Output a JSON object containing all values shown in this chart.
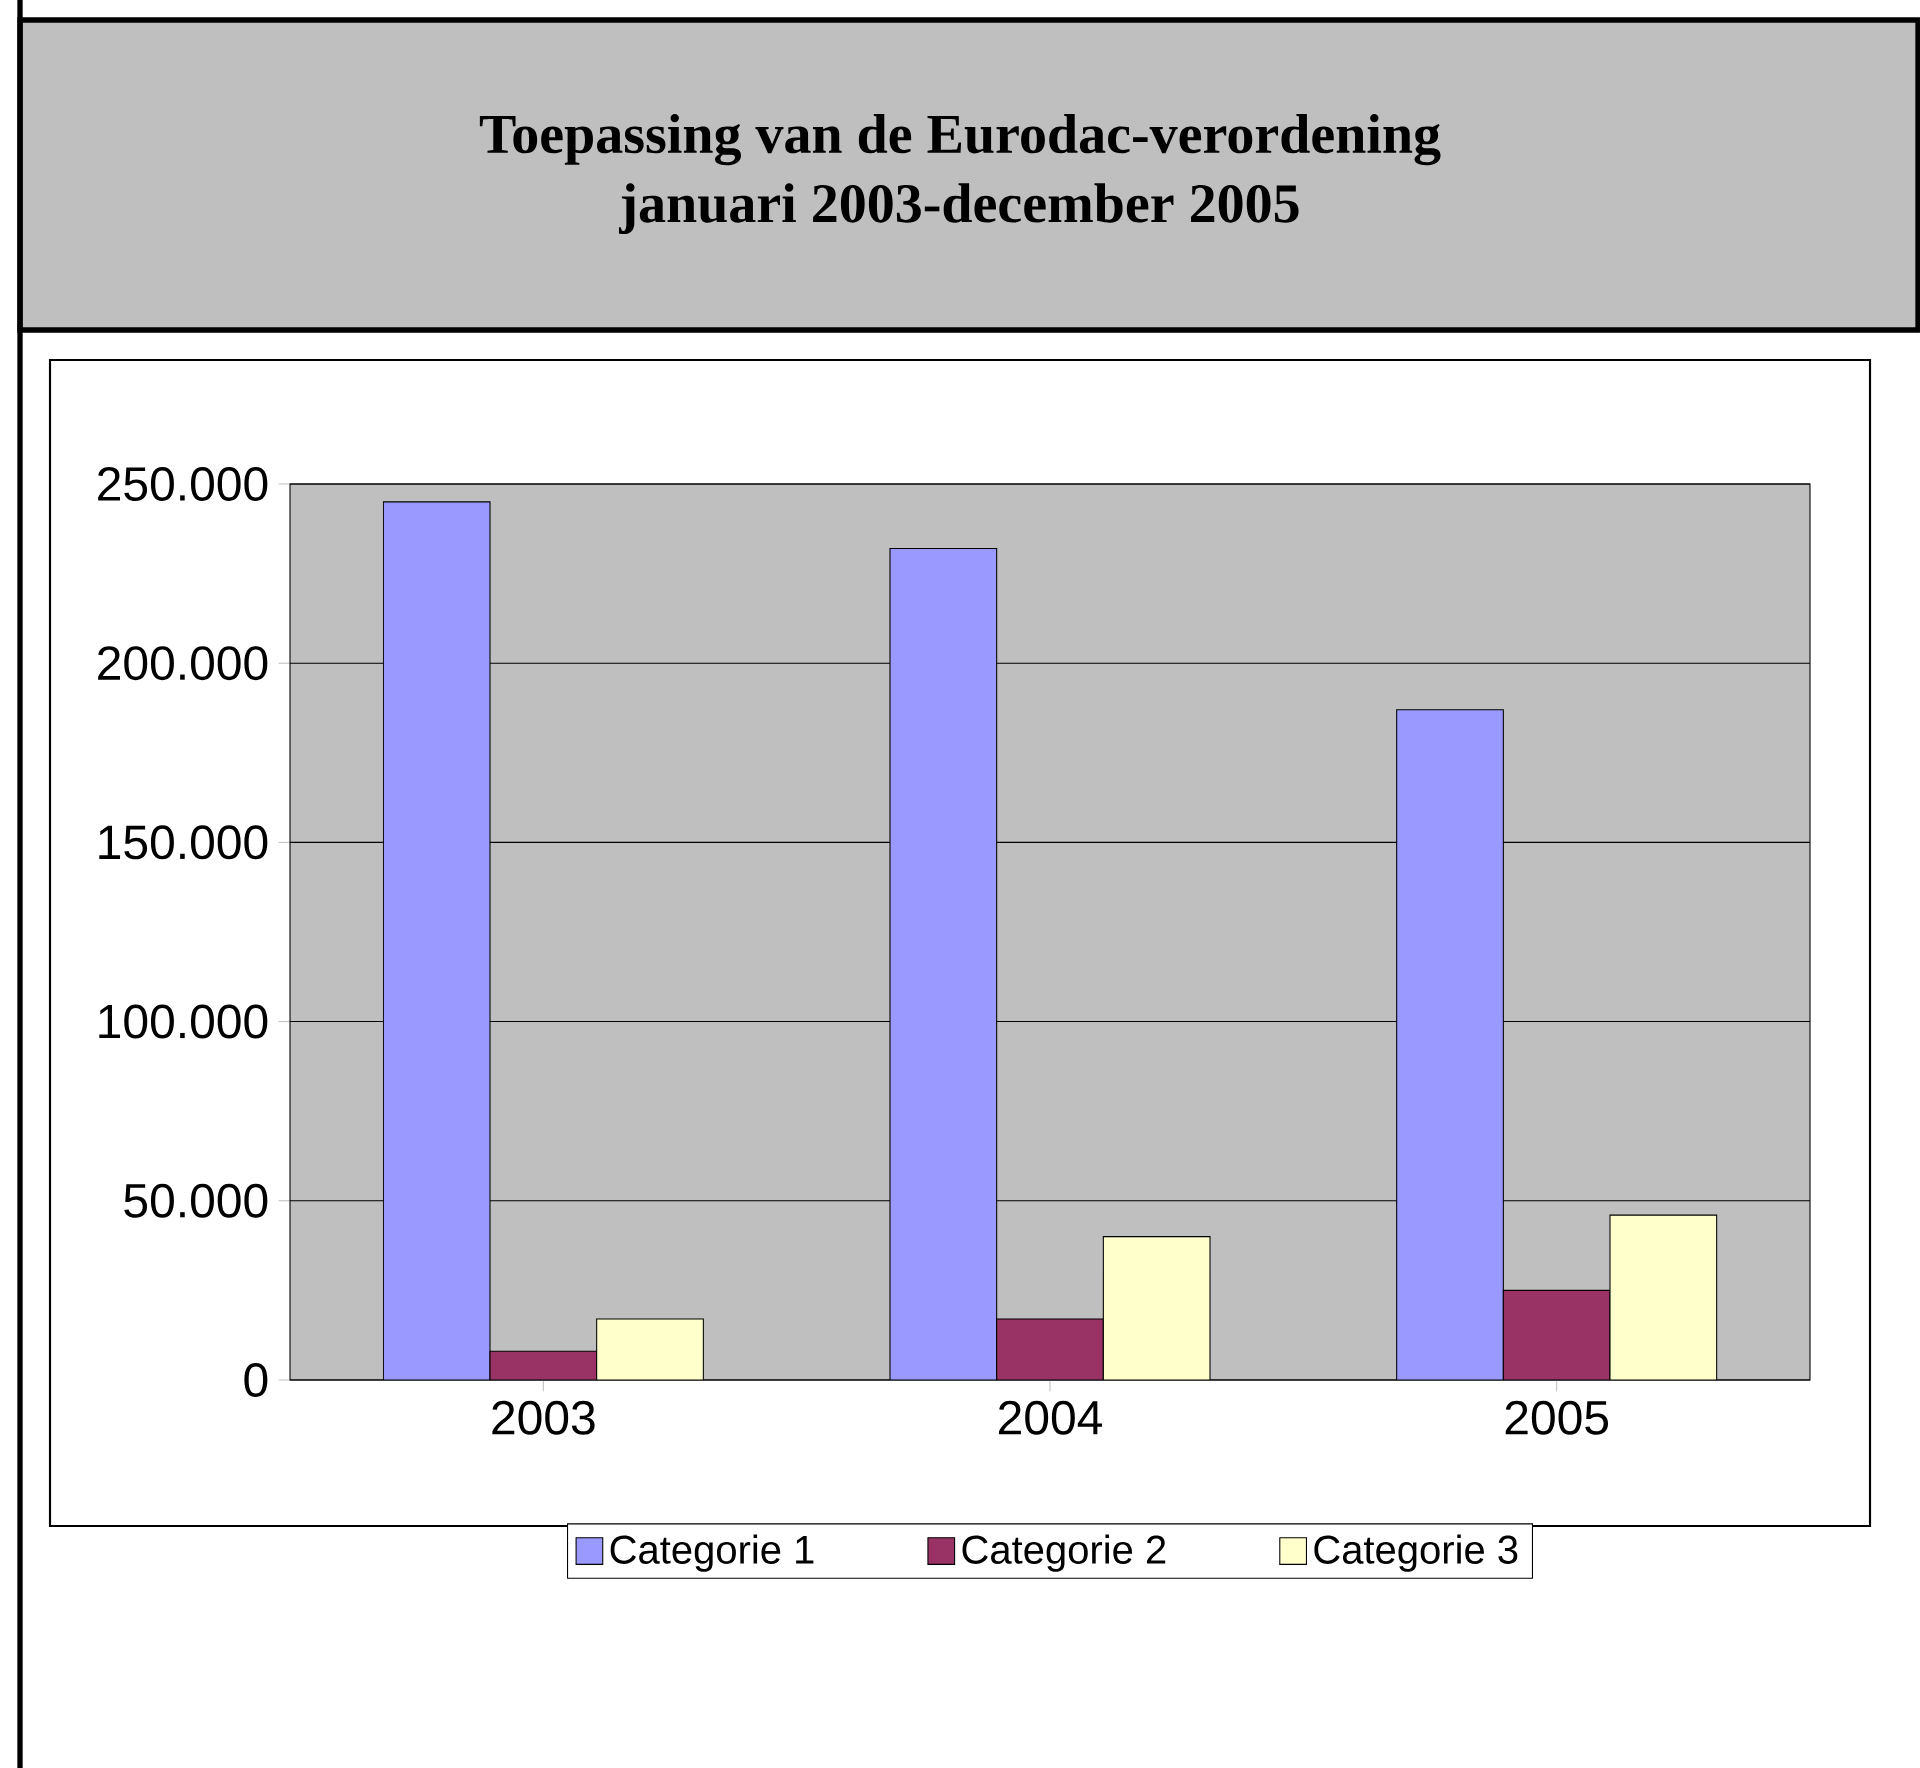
{
  "chart_data": {
    "type": "bar",
    "title": "Toepassing van de Eurodac-verordening",
    "subtitle": "januari 2003-december 2005",
    "categories": [
      "2003",
      "2004",
      "2005"
    ],
    "series": [
      {
        "name": "Categorie 1",
        "color": "#9999ff",
        "values": [
          245000,
          232000,
          187000
        ]
      },
      {
        "name": "Categorie 2",
        "color": "#993366",
        "values": [
          8000,
          17000,
          25000
        ]
      },
      {
        "name": "Categorie 3",
        "color": "#ffffcc",
        "values": [
          17000,
          40000,
          46000
        ]
      }
    ],
    "ylim": [
      0,
      250000
    ],
    "yticks": [
      {
        "value": 0,
        "label": "0"
      },
      {
        "value": 50000,
        "label": "50.000"
      },
      {
        "value": 100000,
        "label": "100.000"
      },
      {
        "value": 150000,
        "label": "150.000"
      },
      {
        "value": 200000,
        "label": "200.000"
      },
      {
        "value": 250000,
        "label": "250.000"
      }
    ],
    "grid": "y",
    "legend": "bottom"
  }
}
